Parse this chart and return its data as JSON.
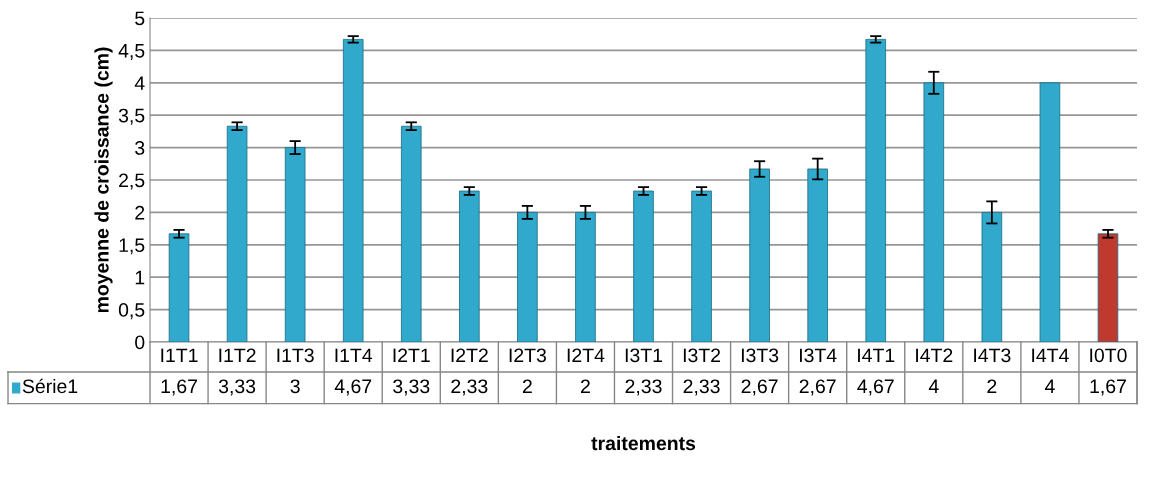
{
  "chart_data": {
    "type": "bar",
    "xlabel": "traitements",
    "ylabel": "moyenne de croissance (cm)",
    "categories": [
      "I1T1",
      "I1T2",
      "I1T3",
      "I1T4",
      "I2T1",
      "I2T2",
      "I2T3",
      "I2T4",
      "I3T1",
      "I3T2",
      "I3T3",
      "I3T4",
      "I4T1",
      "I4T2",
      "I4T3",
      "I4T4",
      "I0T0"
    ],
    "series": [
      {
        "name": "Série1",
        "color": "#31a9cc",
        "colors": [
          "#31a9cc",
          "#31a9cc",
          "#31a9cc",
          "#31a9cc",
          "#31a9cc",
          "#31a9cc",
          "#31a9cc",
          "#31a9cc",
          "#31a9cc",
          "#31a9cc",
          "#31a9cc",
          "#31a9cc",
          "#31a9cc",
          "#31a9cc",
          "#31a9cc",
          "#31a9cc",
          "#c0392f"
        ],
        "values": [
          1.67,
          3.33,
          3,
          4.67,
          3.33,
          2.33,
          2,
          2,
          2.33,
          2.33,
          2.67,
          2.67,
          4.67,
          4,
          2,
          4,
          1.67
        ],
        "value_labels": [
          "1,67",
          "3,33",
          "3",
          "4,67",
          "3,33",
          "2,33",
          "2",
          "2",
          "2,33",
          "2,33",
          "2,67",
          "2,67",
          "4,67",
          "4",
          "2",
          "4",
          "1,67"
        ],
        "errors": [
          0.06,
          0.06,
          0.1,
          0.05,
          0.06,
          0.06,
          0.1,
          0.1,
          0.06,
          0.06,
          0.12,
          0.16,
          0.05,
          0.17,
          0.17,
          null,
          0.06
        ]
      }
    ],
    "ylim": [
      0,
      5
    ],
    "yticks": [
      0,
      {
        "value": 0.5,
        "label": "0,5"
      },
      1,
      {
        "value": 1.5,
        "label": "1,5"
      },
      2,
      {
        "value": 2.5,
        "label": "2,5"
      },
      3,
      {
        "value": 3.5,
        "label": "3,5"
      },
      4,
      {
        "value": 4.5,
        "label": "4,5"
      },
      5
    ],
    "grid": "y",
    "legend": "bottom"
  }
}
